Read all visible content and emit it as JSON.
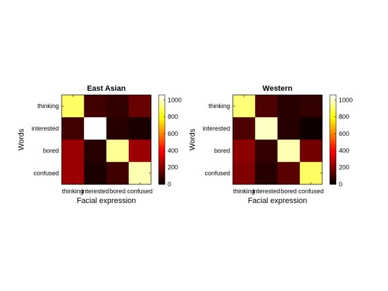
{
  "chart_data": [
    {
      "type": "heatmap",
      "title": "East Asian",
      "xlabel": "Facial expression",
      "ylabel": "Words",
      "x_categories": [
        "thinking",
        "interested",
        "bored",
        "confused"
      ],
      "y_categories": [
        "thinking",
        "interested",
        "bored",
        "confused"
      ],
      "values": [
        [
          900,
          100,
          80,
          160
        ],
        [
          100,
          1060,
          60,
          40
        ],
        [
          240,
          60,
          950,
          240
        ],
        [
          240,
          40,
          100,
          980
        ]
      ],
      "colorbar": {
        "range": [
          0,
          1060
        ],
        "ticks": [
          0,
          200,
          400,
          600,
          800,
          1000
        ],
        "colormap": "hot"
      }
    },
    {
      "type": "heatmap",
      "title": "Western",
      "xlabel": "Facial expression",
      "ylabel": "Words",
      "x_categories": [
        "thinking",
        "interested",
        "bored",
        "confused"
      ],
      "y_categories": [
        "thinking",
        "interested",
        "bored",
        "confused"
      ],
      "values": [
        [
          920,
          120,
          60,
          80
        ],
        [
          120,
          1000,
          60,
          20
        ],
        [
          220,
          80,
          980,
          180
        ],
        [
          200,
          60,
          140,
          900
        ]
      ],
      "colorbar": {
        "range": [
          0,
          1060
        ],
        "ticks": [
          0,
          200,
          400,
          600,
          800,
          1000
        ],
        "colormap": "hot"
      }
    }
  ]
}
